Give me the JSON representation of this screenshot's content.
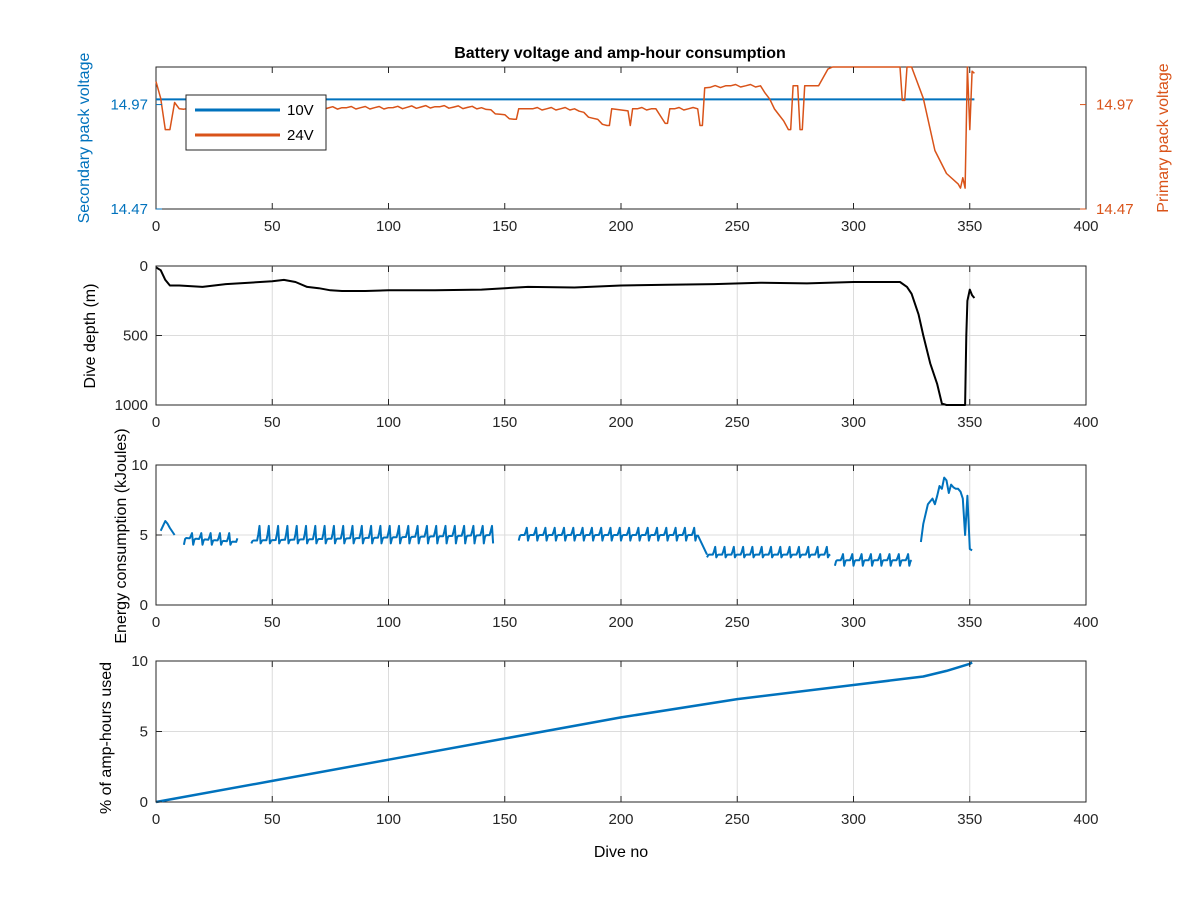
{
  "figure": {
    "title": "Battery voltage and amp-hour consumption",
    "xlabel": "Dive no"
  },
  "colors": {
    "blue": "#0072BD",
    "orange": "#D95319",
    "black": "#000000",
    "axis": "#262626",
    "grid": "#dcdcdc"
  },
  "chart_data": [
    {
      "type": "line",
      "ylabel_left": "Secondary pack voltage",
      "ylabel_right": "Primary pack voltage",
      "xlim": [
        0,
        400
      ],
      "xticks": [
        0,
        50,
        100,
        150,
        200,
        250,
        300,
        350,
        400
      ],
      "ylim": [
        14.47,
        15.15
      ],
      "yticks_left": [
        14.47,
        14.97
      ],
      "yticks_right": [
        14.47,
        14.97
      ],
      "ytick_labels": [
        "14.47",
        "14.97"
      ],
      "legend_position": "top-left",
      "grid": false,
      "series": [
        {
          "name": "10V",
          "axis": "left",
          "x": [
            0,
            352
          ],
          "y": [
            14.995,
            14.995
          ]
        },
        {
          "name": "24V",
          "axis": "right",
          "x": [
            0,
            2,
            4,
            6,
            8,
            10,
            20,
            40,
            60,
            80,
            100,
            120,
            140,
            154,
            155,
            156,
            160,
            180,
            194,
            195,
            196,
            203,
            204,
            205,
            215,
            219,
            220,
            221,
            233,
            234,
            235,
            236,
            245,
            260,
            272,
            273,
            274,
            276,
            277,
            278,
            279,
            280,
            285,
            289,
            291,
            300,
            310,
            320,
            321,
            322,
            323,
            325,
            330,
            335,
            340,
            345,
            346,
            347,
            348,
            349,
            350,
            351,
            352
          ],
          "y": [
            15.08,
            15.0,
            14.85,
            14.85,
            14.98,
            14.95,
            14.94,
            14.95,
            14.95,
            14.955,
            14.955,
            14.96,
            14.955,
            14.9,
            14.9,
            14.95,
            14.95,
            14.95,
            14.87,
            14.87,
            14.95,
            14.94,
            14.87,
            14.95,
            14.95,
            14.88,
            14.88,
            14.95,
            14.95,
            14.87,
            14.87,
            15.05,
            15.06,
            15.06,
            14.85,
            14.85,
            15.06,
            15.06,
            14.85,
            14.85,
            15.06,
            15.06,
            15.06,
            15.14,
            15.17,
            15.18,
            15.18,
            15.17,
            14.99,
            14.99,
            15.16,
            15.15,
            15.0,
            14.75,
            14.64,
            14.59,
            14.57,
            14.62,
            14.57,
            15.15,
            14.85,
            15.13,
            15.12
          ]
        }
      ]
    },
    {
      "type": "line",
      "ylabel": "Dive depth (m)",
      "ylim": [
        0,
        1000
      ],
      "y_reversed": true,
      "yticks": [
        0,
        500,
        1000
      ],
      "xlim": [
        0,
        400
      ],
      "xticks": [
        0,
        50,
        100,
        150,
        200,
        250,
        300,
        350,
        400
      ],
      "grid": true,
      "series": [
        {
          "name": "",
          "x": [
            0,
            2,
            4,
            6,
            10,
            20,
            30,
            40,
            50,
            55,
            60,
            65,
            70,
            75,
            80,
            90,
            100,
            120,
            140,
            150,
            160,
            180,
            200,
            220,
            240,
            260,
            280,
            300,
            315,
            320,
            323,
            325,
            328,
            330,
            333,
            336,
            338,
            340,
            345,
            348,
            348.5,
            349,
            350,
            351,
            352
          ],
          "y": [
            10,
            30,
            100,
            140,
            140,
            150,
            130,
            120,
            110,
            100,
            115,
            150,
            160,
            175,
            180,
            180,
            175,
            175,
            170,
            160,
            150,
            155,
            140,
            135,
            130,
            120,
            125,
            115,
            115,
            115,
            150,
            200,
            350,
            500,
            700,
            850,
            990,
            1000,
            1000,
            1000,
            500,
            250,
            170,
            210,
            230
          ]
        }
      ]
    },
    {
      "type": "line",
      "ylabel": "Energy consumption (kJoules)",
      "ylim": [
        0,
        10
      ],
      "yticks": [
        0,
        5,
        10
      ],
      "xlim": [
        0,
        400
      ],
      "xticks": [
        0,
        50,
        100,
        150,
        200,
        250,
        300,
        350,
        400
      ],
      "grid": true,
      "series": [
        {
          "name": "",
          "segments": [
            {
              "x": [
                2,
                4,
                5,
                6,
                8
              ],
              "y": [
                5.3,
                6.0,
                5.8,
                5.5,
                5.0
              ]
            },
            {
              "x": [
                12,
                35
              ],
              "y": [
                4.8,
                4.5
              ],
              "spike": 5.3,
              "trough": 4.3
            },
            {
              "x": [
                41,
                145
              ],
              "y": [
                4.6,
                5.0
              ],
              "spike": 5.9,
              "trough": 4.4
            },
            {
              "x": [
                156,
                233
              ],
              "y": [
                5.0,
                5.0
              ],
              "spike": 5.7,
              "trough": 4.6
            },
            {
              "x": [
                233,
                237
              ],
              "y": [
                5.0,
                3.6
              ]
            },
            {
              "x": [
                237,
                290
              ],
              "y": [
                3.6,
                3.6
              ],
              "spike": 4.3,
              "trough": 3.4
            },
            {
              "x": [
                292,
                325
              ],
              "y": [
                3.2,
                3.2
              ],
              "spike": 3.8,
              "trough": 2.8
            },
            {
              "x": [
                329,
                330,
                331,
                332,
                333,
                334,
                335,
                336,
                337,
                338,
                339,
                340,
                341,
                342,
                343,
                344,
                345,
                346,
                347,
                348,
                349,
                350,
                351
              ],
              "y": [
                4.5,
                5.8,
                6.5,
                7.2,
                7.4,
                7.6,
                7.2,
                7.8,
                8.5,
                8.3,
                9.1,
                8.9,
                8.0,
                8.6,
                8.4,
                8.3,
                8.3,
                8.1,
                7.6,
                5.0,
                7.8,
                4.0,
                3.9
              ]
            }
          ]
        }
      ]
    },
    {
      "type": "line",
      "ylabel": "% of amp-hours used",
      "ylim": [
        0,
        10
      ],
      "yticks": [
        0,
        5,
        10
      ],
      "xlim": [
        0,
        400
      ],
      "xticks": [
        0,
        50,
        100,
        150,
        200,
        250,
        300,
        350,
        400
      ],
      "grid": true,
      "xlabel": "Dive no",
      "series": [
        {
          "name": "",
          "x": [
            0,
            50,
            100,
            150,
            200,
            250,
            300,
            330,
            340,
            350,
            351
          ],
          "y": [
            0.0,
            1.5,
            3.0,
            4.5,
            6.0,
            7.3,
            8.3,
            8.9,
            9.3,
            9.8,
            9.9
          ]
        }
      ]
    }
  ]
}
